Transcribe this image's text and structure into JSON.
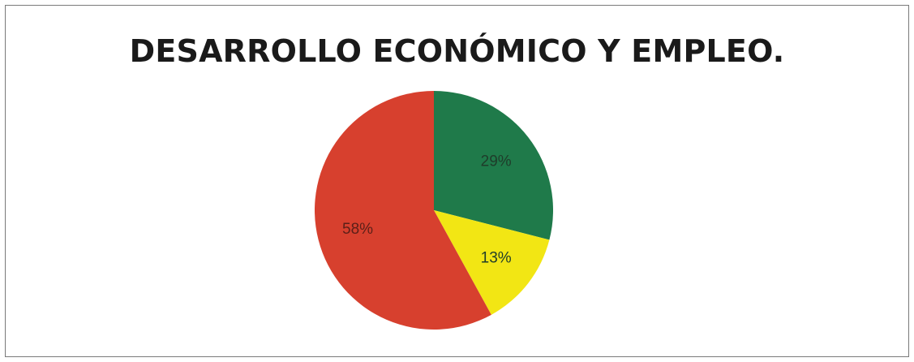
{
  "chart_data": {
    "type": "pie",
    "title": "DESARROLLO ECONÓMICO Y EMPLEO.",
    "slices": [
      {
        "label": "29%",
        "value": 29,
        "color": "#1f7a4a",
        "text_color": "#1f3c2a"
      },
      {
        "label": "13%",
        "value": 13,
        "color": "#f2e614",
        "text_color": "#1f3c2a"
      },
      {
        "label": "58%",
        "value": 58,
        "color": "#d7402e",
        "text_color": "#5b1f18"
      }
    ],
    "start_angle_deg": 0,
    "direction": "clockwise",
    "legend": "none"
  }
}
